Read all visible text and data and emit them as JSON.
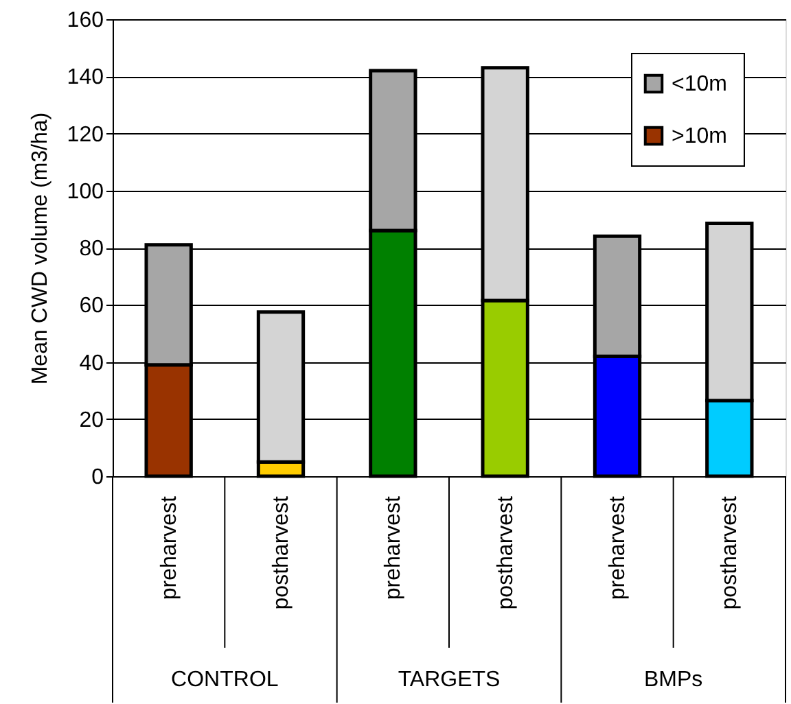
{
  "chart_data": {
    "type": "bar",
    "stacked": true,
    "ylabel": "Mean CWD volume (m3/ha)",
    "categories": [
      "preharvest",
      "postharvest",
      "preharvest",
      "postharvest",
      "preharvest",
      "postharvest"
    ],
    "annotations": [
      "CONTROL",
      "TARGETS",
      "BMPs"
    ],
    "series": [
      {
        "name": ">10m",
        "color": "#993300",
        "colors": [
          "#993300",
          "#ffcc00",
          "#008000",
          "#99cc00",
          "#0000ff",
          "#00ccff"
        ],
        "values": [
          39,
          5,
          86,
          61.5,
          42,
          26.5
        ]
      },
      {
        "name": "<10m",
        "color": "#a6a6a6",
        "colors": [
          "#a6a6a6",
          "#d4d4d4",
          "#a6a6a6",
          "#d4d4d4",
          "#a6a6a6",
          "#d4d4d4"
        ],
        "values": [
          42,
          52.5,
          56,
          81.5,
          42,
          62
        ]
      }
    ],
    "ylim": [
      0,
      160
    ],
    "yticks": [
      0,
      20,
      40,
      60,
      80,
      100,
      120,
      140,
      160
    ],
    "grid": "y",
    "legend": "top right"
  }
}
